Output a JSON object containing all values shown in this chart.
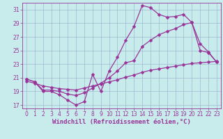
{
  "xlabel": "Windchill (Refroidissement éolien,°C)",
  "background_color": "#c8ecec",
  "line_color": "#993399",
  "grid_color": "#99aacc",
  "xlim": [
    -0.5,
    23.5
  ],
  "ylim": [
    16.5,
    32.0
  ],
  "xticks": [
    0,
    1,
    2,
    3,
    4,
    5,
    6,
    7,
    8,
    9,
    10,
    11,
    12,
    13,
    14,
    15,
    16,
    17,
    18,
    19,
    20,
    21,
    22,
    23
  ],
  "yticks": [
    17,
    19,
    21,
    23,
    25,
    27,
    29,
    31
  ],
  "series1_x": [
    0,
    1,
    2,
    3,
    4,
    5,
    6,
    7,
    8,
    9,
    10,
    11,
    12,
    13,
    14,
    15,
    16,
    17,
    18,
    19,
    20,
    21,
    22,
    23
  ],
  "series1_y": [
    20.8,
    20.4,
    19.0,
    19.0,
    18.5,
    17.7,
    17.0,
    17.5,
    21.5,
    19.0,
    22.0,
    24.0,
    26.5,
    28.5,
    31.6,
    31.3,
    30.3,
    29.9,
    30.0,
    30.3,
    29.1,
    26.0,
    24.8,
    23.3
  ],
  "series2_x": [
    0,
    1,
    2,
    3,
    4,
    5,
    6,
    7,
    8,
    9,
    10,
    11,
    12,
    13,
    14,
    15,
    16,
    17,
    18,
    19,
    20,
    21,
    22,
    23
  ],
  "series2_y": [
    20.8,
    20.4,
    19.2,
    19.2,
    19.0,
    18.6,
    18.4,
    18.8,
    19.5,
    20.2,
    21.0,
    22.0,
    23.2,
    23.5,
    25.6,
    26.5,
    27.3,
    27.8,
    28.2,
    28.8,
    29.1,
    25.0,
    24.7,
    23.3
  ],
  "series3_x": [
    0,
    1,
    2,
    3,
    4,
    5,
    6,
    7,
    8,
    9,
    10,
    11,
    12,
    13,
    14,
    15,
    16,
    17,
    18,
    19,
    20,
    21,
    22,
    23
  ],
  "series3_y": [
    20.5,
    20.2,
    19.8,
    19.6,
    19.4,
    19.3,
    19.2,
    19.5,
    19.8,
    20.1,
    20.4,
    20.7,
    21.1,
    21.4,
    21.8,
    22.1,
    22.3,
    22.5,
    22.7,
    22.9,
    23.1,
    23.2,
    23.3,
    23.4
  ],
  "marker": "D",
  "markersize": 2.5,
  "linewidth": 0.9,
  "tick_fontsize": 5.5,
  "label_fontsize": 6.5
}
